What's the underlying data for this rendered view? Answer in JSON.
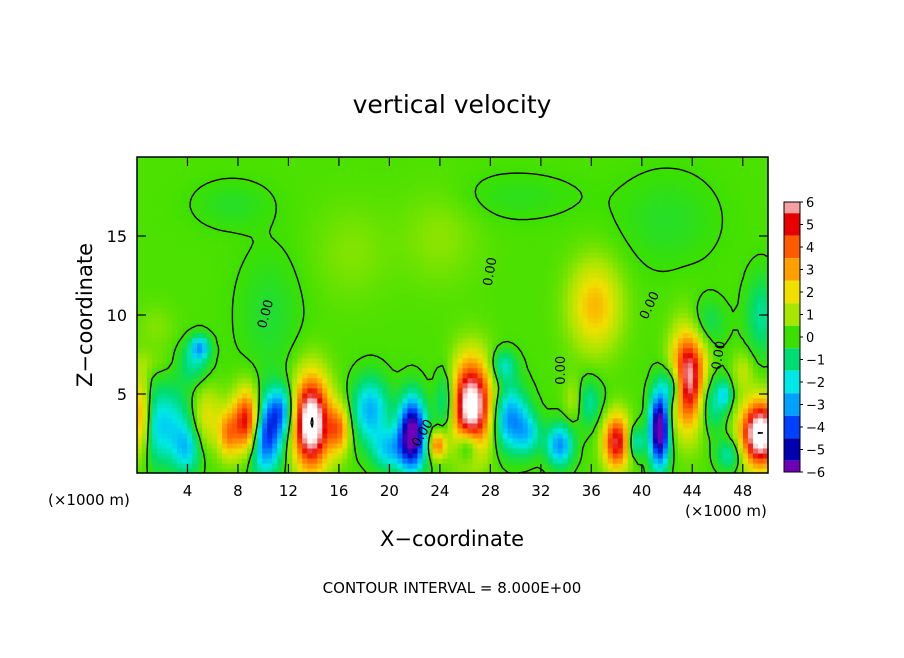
{
  "chart_data": {
    "type": "heatmap",
    "title": "vertical velocity",
    "xlabel": "X−coordinate",
    "ylabel": "Z−coordinate",
    "x_unit_left": "(×1000 m)",
    "x_unit_right": "(×1000 m)",
    "footer": "CONTOUR INTERVAL = 8.000E+00",
    "xlim": [
      0,
      50
    ],
    "ylim": [
      0,
      20
    ],
    "x_ticks": [
      4,
      8,
      12,
      16,
      20,
      24,
      28,
      32,
      36,
      40,
      44,
      48
    ],
    "x_tick_labels": [
      "4",
      "8",
      "12",
      "16",
      "20",
      "24",
      "28",
      "32",
      "36",
      "40",
      "44",
      "48"
    ],
    "y_ticks": [
      5,
      10,
      15
    ],
    "y_tick_labels": [
      "5",
      "10",
      "15"
    ],
    "colorbar": {
      "min": -6,
      "max": 6,
      "labels": [
        "6",
        "5",
        "4",
        "3",
        "2",
        "1",
        "0",
        "−1",
        "−2",
        "−3",
        "−4",
        "−5",
        "−6"
      ],
      "colors": [
        "#f4a0a0",
        "#e80000",
        "#ff5a00",
        "#ffa000",
        "#f0e000",
        "#a6e600",
        "#3ce000",
        "#00dc70",
        "#00e8e8",
        "#00a0ff",
        "#0040ff",
        "#0000b0",
        "#7000b8"
      ]
    },
    "contour_labels": [
      {
        "text": "0.00",
        "x": 10.5,
        "z": 10.0,
        "angle": -75
      },
      {
        "text": "0.00",
        "x": 22.9,
        "z": 2.4,
        "angle": -60
      },
      {
        "text": "0.00",
        "x": 28.3,
        "z": 12.7,
        "angle": -80
      },
      {
        "text": "0.00",
        "x": 33.9,
        "z": 6.5,
        "angle": -90
      },
      {
        "text": "0.00",
        "x": 40.9,
        "z": 10.5,
        "angle": -65
      },
      {
        "text": "0.00",
        "x": 46.4,
        "z": 7.4,
        "angle": -80
      }
    ],
    "features": [
      {
        "x": 0.3,
        "z": 3.5,
        "rx": 0.7,
        "rz": 2.5,
        "w": 4
      },
      {
        "x": 0.8,
        "z": 7.0,
        "rx": 2.0,
        "rz": 0.8,
        "w": 0.5
      },
      {
        "x": 1.5,
        "z": 9.2,
        "rx": 1.5,
        "rz": 1.5,
        "w": 0.5
      },
      {
        "x": 2.0,
        "z": 3.0,
        "rx": 2.5,
        "rz": 2.5,
        "w": -2.5
      },
      {
        "x": 4.0,
        "z": 1.5,
        "rx": 1.0,
        "rz": 1.5,
        "w": -2
      },
      {
        "x": 5.0,
        "z": 8.0,
        "rx": 0.7,
        "rz": 0.7,
        "w": -3
      },
      {
        "x": 4.5,
        "z": 7.0,
        "rx": 1.2,
        "rz": 1.3,
        "w": -1.5
      },
      {
        "x": 5.5,
        "z": 3.5,
        "rx": 1.2,
        "rz": 2.0,
        "w": 2
      },
      {
        "x": 7.2,
        "z": 2.5,
        "rx": 0.7,
        "rz": 1.5,
        "w": 3
      },
      {
        "x": 8.8,
        "z": 3.2,
        "rx": 1.1,
        "rz": 2.0,
        "w": 7
      },
      {
        "x": 10.0,
        "z": 2.5,
        "rx": 1.4,
        "rz": 2.3,
        "w": -5.5
      },
      {
        "x": 11.5,
        "z": 4.0,
        "rx": 1.0,
        "rz": 1.5,
        "w": -3
      },
      {
        "x": 10.5,
        "z": 10.0,
        "rx": 2.5,
        "rz": 4.0,
        "w": -0.6
      },
      {
        "x": 13.8,
        "z": 3.2,
        "rx": 1.4,
        "rz": 2.8,
        "w": 8
      },
      {
        "x": 16.0,
        "z": 2.8,
        "rx": 0.8,
        "rz": 1.5,
        "w": 3.5
      },
      {
        "x": 18.5,
        "z": 4.0,
        "rx": 1.4,
        "rz": 2.0,
        "w": -3
      },
      {
        "x": 21.8,
        "z": 2.5,
        "rx": 1.0,
        "rz": 2.2,
        "w": -7
      },
      {
        "x": 20.0,
        "z": 1.5,
        "rx": 1.3,
        "rz": 1.3,
        "w": -2.5
      },
      {
        "x": 23.8,
        "z": 1.8,
        "rx": 0.6,
        "rz": 0.8,
        "w": 4
      },
      {
        "x": 24.5,
        "z": 4.5,
        "rx": 0.8,
        "rz": 2.0,
        "w": -2.5
      },
      {
        "x": 26.5,
        "z": 4.3,
        "rx": 1.6,
        "rz": 2.8,
        "w": 7.5
      },
      {
        "x": 26.2,
        "z": 1.8,
        "rx": 0.8,
        "rz": 1.0,
        "w": -3
      },
      {
        "x": 29.5,
        "z": 3.5,
        "rx": 1.4,
        "rz": 2.0,
        "w": -3.5
      },
      {
        "x": 29.0,
        "z": 6.8,
        "rx": 1.0,
        "rz": 1.0,
        "w": -2
      },
      {
        "x": 31.0,
        "z": 2.5,
        "rx": 1.0,
        "rz": 1.3,
        "w": -2
      },
      {
        "x": 33.5,
        "z": 1.8,
        "rx": 1.0,
        "rz": 1.3,
        "w": -3.5
      },
      {
        "x": 34.7,
        "z": 4.6,
        "rx": 0.8,
        "rz": 1.4,
        "w": 2
      },
      {
        "x": 36.3,
        "z": 10.6,
        "rx": 2.0,
        "rz": 2.8,
        "w": 2.5
      },
      {
        "x": 35.5,
        "z": 4.5,
        "rx": 1.2,
        "rz": 1.5,
        "w": -2
      },
      {
        "x": 38.0,
        "z": 2.0,
        "rx": 1.0,
        "rz": 1.7,
        "w": 5.5
      },
      {
        "x": 39.5,
        "z": 2.0,
        "rx": 0.6,
        "rz": 1.0,
        "w": -2.5
      },
      {
        "x": 41.4,
        "z": 2.8,
        "rx": 0.7,
        "rz": 2.3,
        "w": -7.5
      },
      {
        "x": 42.5,
        "z": 5.5,
        "rx": 0.8,
        "rz": 1.3,
        "w": -3
      },
      {
        "x": 43.7,
        "z": 6.0,
        "rx": 1.3,
        "rz": 3.0,
        "w": 6.5
      },
      {
        "x": 45.0,
        "z": 9.5,
        "rx": 1.5,
        "rz": 1.5,
        "w": -1.2
      },
      {
        "x": 45.5,
        "z": 4.5,
        "rx": 1.2,
        "rz": 1.8,
        "w": -2
      },
      {
        "x": 46.6,
        "z": 5.0,
        "rx": 0.5,
        "rz": 0.8,
        "w": -2
      },
      {
        "x": 48.0,
        "z": 6.5,
        "rx": 0.8,
        "rz": 1.2,
        "w": 1.2
      },
      {
        "x": 49.4,
        "z": 2.5,
        "rx": 1.5,
        "rz": 2.0,
        "w": 8
      },
      {
        "x": 49.5,
        "z": 10.0,
        "rx": 1.2,
        "rz": 2.5,
        "w": -1.5
      },
      {
        "x": 47.0,
        "z": 1.2,
        "rx": 1.0,
        "rz": 1.0,
        "w": -2
      },
      {
        "x": 7.5,
        "z": 17.0,
        "rx": 3.0,
        "rz": 1.5,
        "w": -0.5
      },
      {
        "x": 17.0,
        "z": 14.0,
        "rx": 3.0,
        "rz": 3.0,
        "w": 0.5
      },
      {
        "x": 24.0,
        "z": 15.0,
        "rx": 3.0,
        "rz": 3.0,
        "w": 0.6
      },
      {
        "x": 30.0,
        "z": 17.5,
        "rx": 5.0,
        "rz": 1.5,
        "w": -0.4
      },
      {
        "x": 42.0,
        "z": 16.0,
        "rx": 4.0,
        "rz": 3.0,
        "w": -0.5
      }
    ]
  }
}
